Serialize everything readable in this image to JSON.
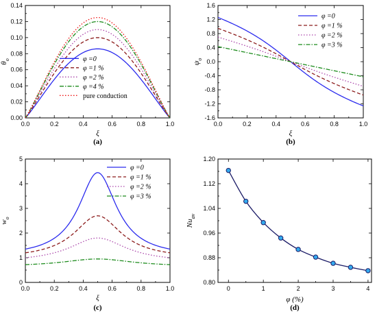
{
  "chart_data": [
    {
      "id": "a",
      "type": "line",
      "panel_label": "(a)",
      "xlabel": "ξ",
      "ylabel": "θ",
      "ylabel_sub": "o",
      "xlim": [
        0,
        1
      ],
      "ylim": [
        0,
        0.14
      ],
      "xticks": [
        "0.0",
        "0.2",
        "0.4",
        "0.6",
        "0.8",
        "1.0"
      ],
      "xtick_values": [
        0,
        0.2,
        0.4,
        0.6,
        0.8,
        1.0
      ],
      "yticks": [
        "0.00",
        "0.02",
        "0.04",
        "0.06",
        "0.08",
        "0.10",
        "0.12",
        "0.14"
      ],
      "ytick_values": [
        0,
        0.02,
        0.04,
        0.06,
        0.08,
        0.1,
        0.12,
        0.14
      ],
      "legend_position": "lower-center",
      "series": [
        {
          "name": "φ =0",
          "color": "#2a2aee",
          "dash": "solid",
          "shape": "bell",
          "peak_x": 0.5,
          "peak_y": 0.086
        },
        {
          "name": "φ =1 %",
          "color": "#8b1a1a",
          "dash": "dash",
          "shape": "bell",
          "peak_x": 0.5,
          "peak_y": 0.1
        },
        {
          "name": "φ =2 %",
          "color": "#aa44aa",
          "dash": "dot",
          "shape": "bell",
          "peak_x": 0.5,
          "peak_y": 0.11
        },
        {
          "name": "φ =4 %",
          "color": "#1a8a1a",
          "dash": "dashdot",
          "shape": "bell",
          "peak_x": 0.5,
          "peak_y": 0.12
        },
        {
          "name": "pure conduction",
          "color": "#ee1111",
          "dash": "dot",
          "shape": "bell",
          "peak_x": 0.5,
          "peak_y": 0.125
        }
      ]
    },
    {
      "id": "b",
      "type": "line",
      "panel_label": "(b)",
      "xlabel": "ξ",
      "ylabel": "ψ",
      "ylabel_sub": "o",
      "xlim": [
        0,
        1
      ],
      "ylim": [
        -1.6,
        1.6
      ],
      "xticks": [
        "0.0",
        "0.2",
        "0.4",
        "0.6",
        "0.8",
        "1.0"
      ],
      "xtick_values": [
        0,
        0.2,
        0.4,
        0.6,
        0.8,
        1.0
      ],
      "yticks": [
        "-1.6",
        "-1.2",
        "-0.8",
        "-0.4",
        "0.0",
        "0.4",
        "0.8",
        "1.2",
        "1.6"
      ],
      "ytick_values": [
        -1.6,
        -1.2,
        -0.8,
        -0.4,
        0,
        0.4,
        0.8,
        1.2,
        1.6
      ],
      "legend_position": "top-right",
      "series": [
        {
          "name": "φ =0",
          "color": "#2a2aee",
          "dash": "solid",
          "shape": "sigmoid",
          "start_y": 1.26,
          "curvature": 0.9
        },
        {
          "name": "φ =1 %",
          "color": "#8b1a1a",
          "dash": "dash",
          "shape": "sigmoid",
          "start_y": 0.95,
          "curvature": 0.55
        },
        {
          "name": "φ =2 %",
          "color": "#aa44aa",
          "dash": "dot",
          "shape": "sigmoid",
          "start_y": 0.7,
          "curvature": 0.3
        },
        {
          "name": "φ =3 %",
          "color": "#1a8a1a",
          "dash": "dashdot",
          "shape": "sigmoid",
          "start_y": 0.43,
          "curvature": 0.0
        }
      ]
    },
    {
      "id": "c",
      "type": "line",
      "panel_label": "(c)",
      "xlabel": "ξ",
      "ylabel": "w",
      "ylabel_sub": "o",
      "xlim": [
        0,
        1
      ],
      "ylim": [
        0,
        5
      ],
      "xticks": [
        "0.0",
        "0.2",
        "0.4",
        "0.6",
        "0.8",
        "1.0"
      ],
      "xtick_values": [
        0,
        0.2,
        0.4,
        0.6,
        0.8,
        1.0
      ],
      "yticks": [
        "0",
        "1",
        "2",
        "3",
        "4",
        "5"
      ],
      "ytick_values": [
        0,
        1,
        2,
        3,
        4,
        5
      ],
      "legend_position": "top-right",
      "series": [
        {
          "name": "φ =0",
          "color": "#2a2aee",
          "dash": "solid",
          "shape": "lorentz",
          "base_y": 1.35,
          "peak_y": 4.45,
          "width": 0.16
        },
        {
          "name": "φ =1 %",
          "color": "#8b1a1a",
          "dash": "dash",
          "shape": "lorentz",
          "base_y": 1.2,
          "peak_y": 2.7,
          "width": 0.2
        },
        {
          "name": "φ =2 %",
          "color": "#aa44aa",
          "dash": "dot",
          "shape": "lorentz",
          "base_y": 1.0,
          "peak_y": 1.8,
          "width": 0.24
        },
        {
          "name": "φ =3 %",
          "color": "#1a8a1a",
          "dash": "dashdot",
          "shape": "lorentz",
          "base_y": 0.72,
          "peak_y": 0.95,
          "width": 0.3
        }
      ]
    },
    {
      "id": "d",
      "type": "line",
      "panel_label": "(d)",
      "xlabel": "φ (%)",
      "ylabel": "Nu",
      "ylabel_sub": "av",
      "xlim": [
        -0.3,
        4.1
      ],
      "ylim": [
        0.8,
        1.2
      ],
      "xticks": [
        "0",
        "1",
        "2",
        "3",
        "4"
      ],
      "xtick_values": [
        0,
        1,
        2,
        3,
        4
      ],
      "yticks": [
        "0.80",
        "0.88",
        "0.96",
        "1.04",
        "1.12",
        "1.20"
      ],
      "ytick_values": [
        0.8,
        0.88,
        0.96,
        1.04,
        1.12,
        1.2
      ],
      "series": [
        {
          "color": "#1a1a66",
          "marker_fill": "#33aaee",
          "x": [
            0,
            0.5,
            1.0,
            1.5,
            2.0,
            2.5,
            3.0,
            3.5,
            4.0
          ],
          "y": [
            1.163,
            1.063,
            0.994,
            0.944,
            0.907,
            0.882,
            0.862,
            0.849,
            0.838
          ]
        }
      ]
    }
  ]
}
